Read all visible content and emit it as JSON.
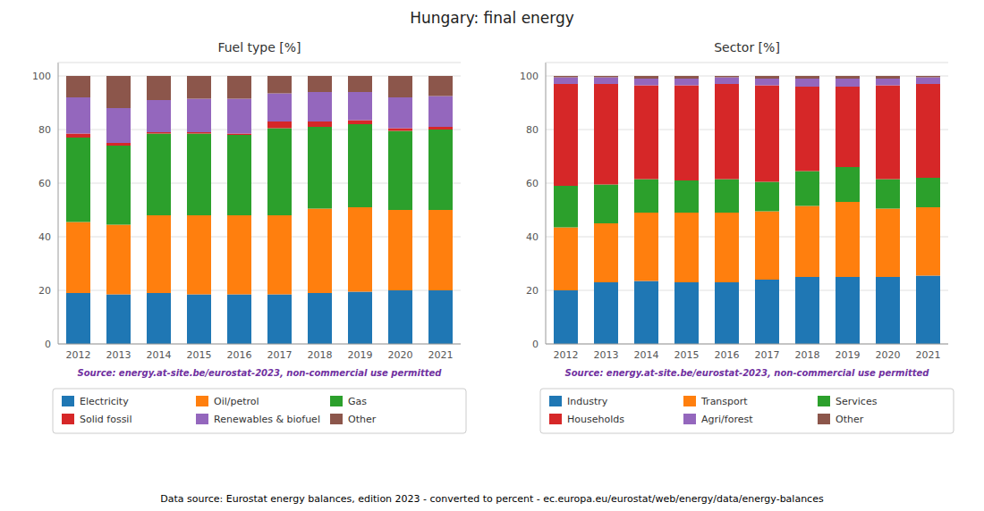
{
  "title": "Hungary: final energy",
  "annotations": [
    {
      "text": "Data source: Eurostat energy balances, edition 2023 - converted to percent - ec.europa.eu/eurostat/web/energy/data/energy-balances"
    }
  ],
  "chart_data": [
    {
      "type": "bar",
      "title": "Fuel type [%]",
      "stacked": true,
      "grid": true,
      "legend": "bottom",
      "categories": [
        "2012",
        "2013",
        "2014",
        "2015",
        "2016",
        "2017",
        "2018",
        "2019",
        "2020",
        "2021"
      ],
      "ylim": [
        0,
        105
      ],
      "yticks": [
        0,
        20,
        40,
        60,
        80,
        100
      ],
      "series": [
        {
          "name": "Electricity",
          "color": "#1f77b4",
          "values": [
            19.0,
            18.5,
            19.0,
            18.5,
            18.5,
            18.5,
            19.0,
            19.5,
            20.0,
            20.0
          ]
        },
        {
          "name": "Oil/petrol",
          "color": "#ff7f0e",
          "values": [
            26.5,
            26.0,
            29.0,
            29.5,
            29.5,
            29.5,
            31.5,
            31.5,
            30.0,
            30.0
          ]
        },
        {
          "name": "Gas",
          "color": "#2ca02c",
          "values": [
            31.5,
            29.5,
            30.5,
            30.5,
            30.0,
            32.5,
            30.5,
            31.0,
            29.5,
            30.0
          ]
        },
        {
          "name": "Solid fossil",
          "color": "#d62728",
          "values": [
            1.5,
            1.0,
            0.5,
            0.5,
            0.5,
            2.5,
            2.0,
            1.5,
            1.0,
            1.0
          ]
        },
        {
          "name": "Renewables & biofuel",
          "color": "#9467bd",
          "values": [
            13.5,
            13.0,
            12.0,
            12.5,
            13.0,
            10.5,
            11.0,
            10.5,
            11.5,
            11.5
          ]
        },
        {
          "name": "Other",
          "color": "#8c564b",
          "values": [
            8.0,
            12.0,
            9.0,
            8.5,
            8.5,
            6.5,
            6.0,
            6.0,
            8.0,
            7.5
          ]
        }
      ],
      "annotations": [
        {
          "text": "Source: energy.at-site.be/eurostat-2023, non-commercial use permitted",
          "color": "#7030A0"
        }
      ]
    },
    {
      "type": "bar",
      "title": "Sector [%]",
      "stacked": true,
      "grid": true,
      "legend": "bottom",
      "categories": [
        "2012",
        "2013",
        "2014",
        "2015",
        "2016",
        "2017",
        "2018",
        "2019",
        "2020",
        "2021"
      ],
      "ylim": [
        0,
        105
      ],
      "yticks": [
        0,
        20,
        40,
        60,
        80,
        100
      ],
      "series": [
        {
          "name": "Industry",
          "color": "#1f77b4",
          "values": [
            20.0,
            23.0,
            23.5,
            23.0,
            23.0,
            24.0,
            25.0,
            25.0,
            25.0,
            25.5
          ]
        },
        {
          "name": "Transport",
          "color": "#ff7f0e",
          "values": [
            23.5,
            22.0,
            25.5,
            26.0,
            26.0,
            25.5,
            26.5,
            28.0,
            25.5,
            25.5
          ]
        },
        {
          "name": "Services",
          "color": "#2ca02c",
          "values": [
            15.5,
            14.5,
            12.5,
            12.0,
            12.5,
            11.0,
            13.0,
            13.0,
            11.0,
            11.0
          ]
        },
        {
          "name": "Households",
          "color": "#d62728",
          "values": [
            38.0,
            37.5,
            35.0,
            35.5,
            35.5,
            36.0,
            31.5,
            30.0,
            35.0,
            35.0
          ]
        },
        {
          "name": "Agri/forest",
          "color": "#9467bd",
          "values": [
            2.5,
            2.5,
            2.5,
            2.5,
            2.5,
            2.5,
            3.0,
            3.0,
            2.5,
            2.5
          ]
        },
        {
          "name": "Other",
          "color": "#8c564b",
          "values": [
            0.5,
            0.5,
            1.0,
            1.0,
            0.5,
            1.0,
            1.0,
            1.0,
            1.0,
            0.5
          ]
        }
      ],
      "annotations": [
        {
          "text": "Source: energy.at-site.be/eurostat-2023, non-commercial use permitted",
          "color": "#7030A0"
        }
      ]
    }
  ]
}
